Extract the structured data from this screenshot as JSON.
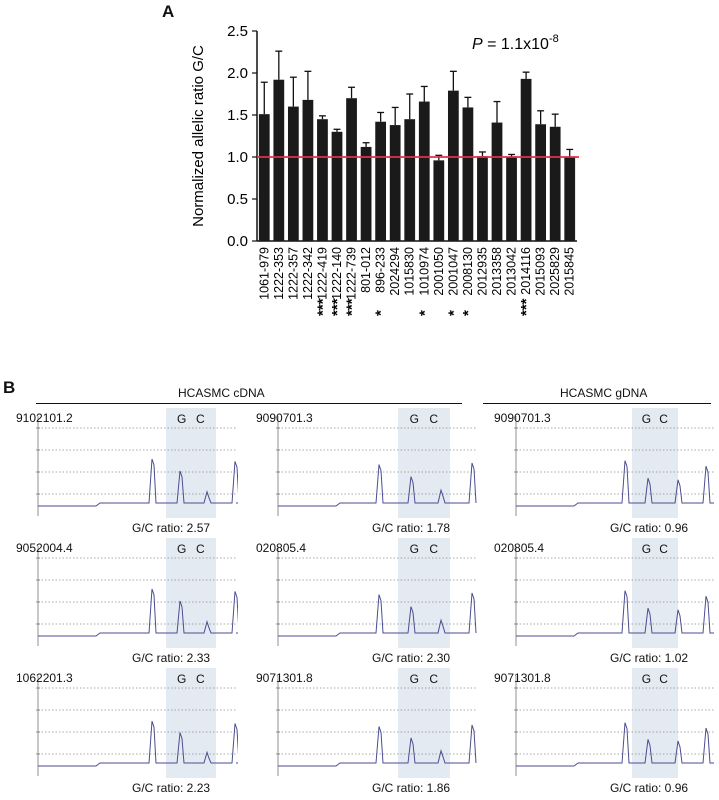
{
  "panel_a": {
    "letter": "A"
  },
  "panel_b": {
    "letter": "B",
    "group_cdna": "HCASMC cDNA",
    "group_gdna": "HCASMC gDNA",
    "gc_g": "G",
    "gc_c": "C",
    "panels": [
      {
        "sample": "9102101.2",
        "ratio_text": "G/C ratio: 2.57",
        "ratio": 2.57
      },
      {
        "sample": "9090701.3",
        "ratio_text": "G/C ratio: 1.78",
        "ratio": 1.78
      },
      {
        "sample": "9090701.3",
        "ratio_text": "G/C ratio: 0.96",
        "ratio": 0.96
      },
      {
        "sample": "9052004.4",
        "ratio_text": "G/C ratio: 2.33",
        "ratio": 2.33
      },
      {
        "sample": "020805.4",
        "ratio_text": "G/C ratio: 2.30",
        "ratio": 2.3
      },
      {
        "sample": "020805.4",
        "ratio_text": "G/C ratio: 1.02",
        "ratio": 1.02
      },
      {
        "sample": "1062201.3",
        "ratio_text": "G/C ratio: 2.23",
        "ratio": 2.23
      },
      {
        "sample": "9071301.8",
        "ratio_text": "G/C ratio: 1.86",
        "ratio": 1.86
      },
      {
        "sample": "9071301.8",
        "ratio_text": "G/C ratio: 0.96",
        "ratio": 0.96
      }
    ]
  },
  "chart_data": {
    "type": "bar",
    "title": "",
    "ylabel": "Normalized allelic ratio G/C",
    "xlabel": "",
    "ylim": [
      0,
      2.5
    ],
    "yticks": [
      "0.0",
      "0.5",
      "1.0",
      "1.5",
      "2.0",
      "2.5"
    ],
    "annotation_p": "P",
    "annotation_rest": " = 1.1x10",
    "annotation_exp": "-8",
    "reference_line": 1.0,
    "reference_color": "#e0304a",
    "bar_color": "#1a1a1a",
    "categories": [
      "1061-979",
      "1222-353",
      "1222-357",
      "1222-342",
      "1222-419",
      "1222-140",
      "1222-739",
      "801-012",
      "896-233",
      "2024294",
      "1015830",
      "1010974",
      "2001050",
      "2001047",
      "2008130",
      "2012935",
      "2013358",
      "2013042",
      "2014116",
      "2015093",
      "2025829",
      "2015845"
    ],
    "values": [
      1.51,
      1.92,
      1.6,
      1.68,
      1.45,
      1.3,
      1.7,
      1.12,
      1.42,
      1.38,
      1.45,
      1.66,
      0.96,
      1.79,
      1.59,
      1.01,
      1.41,
      1.0,
      1.93,
      1.39,
      1.36,
      1.0
    ],
    "errors": [
      0.38,
      0.34,
      0.35,
      0.34,
      0.04,
      0.03,
      0.13,
      0.05,
      0.11,
      0.21,
      0.3,
      0.18,
      0.06,
      0.23,
      0.12,
      0.05,
      0.25,
      0.03,
      0.08,
      0.16,
      0.15,
      0.09
    ],
    "significance": [
      "",
      "",
      "",
      "",
      "***",
      "***",
      "***",
      "",
      "*",
      "",
      "",
      "*",
      "",
      "*",
      "*",
      "",
      "",
      "",
      "***",
      "",
      "",
      ""
    ]
  }
}
